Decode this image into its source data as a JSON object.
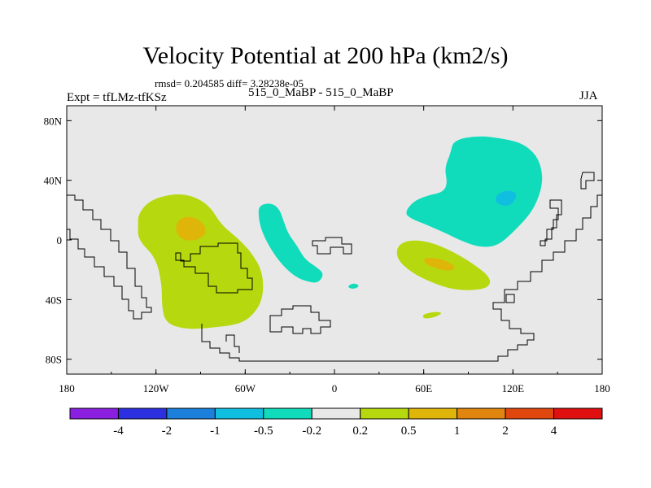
{
  "title": "Velocity Potential at 200 hPa (km2/s)",
  "subtitle": "rmsd= 0.204585  diff= 3.28238e-05",
  "left_label": "Expt = tfLMz-tfKSz",
  "center_label": "515_0_MaBP - 515_0_MaBP",
  "right_label": "JJA",
  "chart_data": {
    "type": "heatmap",
    "title": "Velocity Potential at 200 hPa (km2/s)",
    "xlabel": "",
    "ylabel": "",
    "xlim": [
      -180,
      180
    ],
    "ylim": [
      -90,
      90
    ],
    "x_ticks": [
      {
        "value": -180,
        "label": "180"
      },
      {
        "value": -120,
        "label": "120W"
      },
      {
        "value": -60,
        "label": "60W"
      },
      {
        "value": 0,
        "label": "0"
      },
      {
        "value": 60,
        "label": "60E"
      },
      {
        "value": 120,
        "label": "120E"
      },
      {
        "value": 180,
        "label": "180"
      }
    ],
    "y_ticks": [
      {
        "value": 80,
        "label": "80N"
      },
      {
        "value": 40,
        "label": "40N"
      },
      {
        "value": 0,
        "label": "0"
      },
      {
        "value": -40,
        "label": "40S"
      },
      {
        "value": -80,
        "label": "80S"
      }
    ],
    "colorbar": {
      "levels": [
        "-4",
        "-2",
        "-1",
        "-0.5",
        "-0.2",
        "0.2",
        "0.5",
        "1",
        "2",
        "4"
      ],
      "colors": [
        "#8a1fe0",
        "#2b2fe0",
        "#1a80db",
        "#10bfe0",
        "#10dcbc",
        "#e8e8e8",
        "#b6d80e",
        "#e0b50a",
        "#e0850e",
        "#e0470e",
        "#e01010"
      ]
    },
    "background_color": "#e8e8e8",
    "regions": [
      {
        "name": "positive-west-outer",
        "level": "0.2 to 0.5",
        "color": "#b6d80e",
        "outline": [
          [
            -132,
            17
          ],
          [
            -125,
            26
          ],
          [
            -110,
            31
          ],
          [
            -96,
            30
          ],
          [
            -84,
            23
          ],
          [
            -76,
            10
          ],
          [
            -66,
            2
          ],
          [
            -56,
            -8
          ],
          [
            -48,
            -22
          ],
          [
            -48,
            -40
          ],
          [
            -56,
            -52
          ],
          [
            -66,
            -57
          ],
          [
            -84,
            -59
          ],
          [
            -100,
            -60
          ],
          [
            -113,
            -56
          ],
          [
            -116,
            -46
          ],
          [
            -116,
            -30
          ],
          [
            -120,
            -12
          ],
          [
            -132,
            0
          ],
          [
            -132,
            10
          ]
        ]
      },
      {
        "name": "positive-west-inner",
        "level": "0.5 to 1",
        "color": "#e0b50a",
        "outline": [
          [
            -105,
            14
          ],
          [
            -97,
            16
          ],
          [
            -90,
            13
          ],
          [
            -86,
            7
          ],
          [
            -88,
            2
          ],
          [
            -96,
            -1
          ],
          [
            -104,
            1
          ],
          [
            -107,
            7
          ]
        ]
      },
      {
        "name": "negative-atlantic",
        "level": "-0.5 to -0.2",
        "color": "#10dcbc",
        "outline": [
          [
            -51,
            23
          ],
          [
            -43,
            25
          ],
          [
            -37,
            21
          ],
          [
            -34,
            12
          ],
          [
            -31,
            4
          ],
          [
            -25,
            -4
          ],
          [
            -20,
            -13
          ],
          [
            -11,
            -19
          ],
          [
            -7,
            -23
          ],
          [
            -11,
            -29
          ],
          [
            -18,
            -28
          ],
          [
            -26,
            -25
          ],
          [
            -35,
            -17
          ],
          [
            -43,
            -6
          ],
          [
            -49,
            6
          ],
          [
            -51,
            15
          ]
        ]
      },
      {
        "name": "negative-small-blob",
        "level": "-0.5 to -0.2",
        "color": "#10dcbc",
        "outline": [
          [
            10,
            -30
          ],
          [
            14,
            -29
          ],
          [
            17,
            -31
          ],
          [
            13,
            -33
          ],
          [
            9,
            -32
          ]
        ]
      },
      {
        "name": "negative-asia",
        "level": "-0.5 to -0.2",
        "color": "#10dcbc",
        "outline": [
          [
            80,
            67
          ],
          [
            97,
            70
          ],
          [
            113,
            68
          ],
          [
            126,
            65
          ],
          [
            136,
            57
          ],
          [
            140,
            45
          ],
          [
            139,
            33
          ],
          [
            133,
            19
          ],
          [
            122,
            7
          ],
          [
            110,
            -4
          ],
          [
            98,
            -5
          ],
          [
            86,
            -1
          ],
          [
            76,
            4
          ],
          [
            60,
            11
          ],
          [
            52,
            14
          ],
          [
            47,
            18
          ],
          [
            53,
            26
          ],
          [
            63,
            30
          ],
          [
            73,
            32
          ],
          [
            76,
            38
          ],
          [
            74,
            48
          ],
          [
            78,
            58
          ]
        ]
      },
      {
        "name": "negative-asia-inner",
        "level": "-1 to -0.5",
        "color": "#10bfe0",
        "outline": [
          [
            109,
            30
          ],
          [
            114,
            33
          ],
          [
            120,
            33
          ],
          [
            123,
            30
          ],
          [
            119,
            23
          ],
          [
            112,
            23
          ],
          [
            108,
            26
          ]
        ]
      },
      {
        "name": "positive-indian-ocean",
        "level": "0.2 to 0.5",
        "color": "#b6d80e",
        "outline": [
          [
            42,
            -4
          ],
          [
            50,
            0
          ],
          [
            63,
            -1
          ],
          [
            78,
            -7
          ],
          [
            92,
            -15
          ],
          [
            105,
            -25
          ],
          [
            104,
            -32
          ],
          [
            92,
            -34
          ],
          [
            78,
            -33
          ],
          [
            64,
            -28
          ],
          [
            52,
            -22
          ],
          [
            42,
            -13
          ]
        ]
      },
      {
        "name": "positive-indian-ocean-inner",
        "level": "0.5 to 1",
        "color": "#e0b50a",
        "outline": [
          [
            60,
            -12
          ],
          [
            66,
            -12
          ],
          [
            76,
            -14
          ],
          [
            82,
            -19
          ],
          [
            77,
            -21
          ],
          [
            68,
            -19
          ],
          [
            61,
            -16
          ]
        ]
      },
      {
        "name": "positive-small-south",
        "level": "0.2 to 0.5",
        "color": "#b6d80e",
        "outline": [
          [
            59,
            -50
          ],
          [
            68,
            -48
          ],
          [
            73,
            -49
          ],
          [
            67,
            -52
          ],
          [
            60,
            -53
          ]
        ]
      }
    ]
  }
}
